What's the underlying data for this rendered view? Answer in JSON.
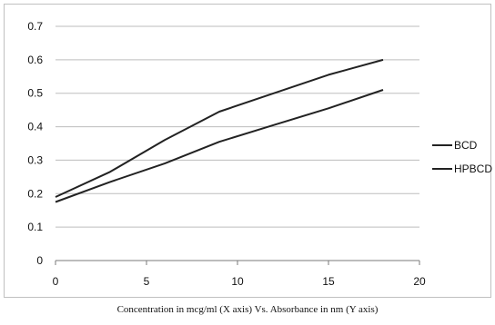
{
  "caption": "Concentration in mcg/ml (X axis) Vs.  Absorbance in nm (Y axis)",
  "chart_data": {
    "type": "line",
    "title": "",
    "xlabel": "",
    "ylabel": "",
    "xlim": [
      0,
      20
    ],
    "ylim": [
      0,
      0.7
    ],
    "xticks": [
      "0",
      "5",
      "10",
      "15",
      "20"
    ],
    "yticks": [
      "0",
      "0.1",
      "0.2",
      "0.3",
      "0.4",
      "0.5",
      "0.6",
      "0.7"
    ],
    "grid": "horizontal",
    "legend_position": "right",
    "series": [
      {
        "name": "BCD",
        "color": "#222222",
        "x": [
          0,
          3,
          6,
          9,
          12,
          15,
          18
        ],
        "y": [
          0.175,
          0.235,
          0.29,
          0.355,
          0.405,
          0.455,
          0.51
        ]
      },
      {
        "name": "HPBCD",
        "color": "#222222",
        "x": [
          0,
          3,
          6,
          9,
          12,
          15,
          18
        ],
        "y": [
          0.19,
          0.265,
          0.36,
          0.445,
          0.5,
          0.555,
          0.6
        ]
      }
    ]
  }
}
